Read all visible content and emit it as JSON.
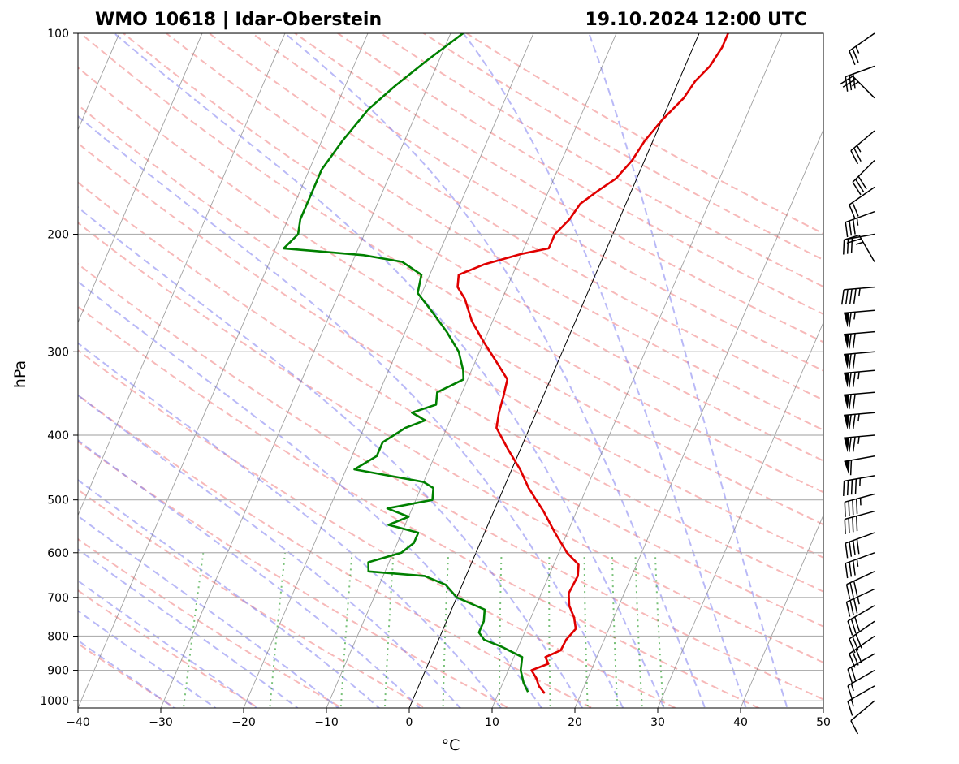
{
  "chart_data": {
    "type": "line",
    "chart_kind": "skew-T log-p sounding",
    "title_left": "WMO 10618 | Idar-Oberstein",
    "title_right": "19.10.2024 12:00 UTC",
    "xlabel": "°C",
    "ylabel": "hPa",
    "xlim": [
      -40,
      50
    ],
    "ylim": [
      1025,
      100
    ],
    "y_scale": "log",
    "x_ticks": [
      -40,
      -30,
      -20,
      -10,
      0,
      10,
      20,
      30,
      40,
      50
    ],
    "x_tick_labels": [
      "−40",
      "−30",
      "−20",
      "−10",
      "0",
      "10",
      "20",
      "30",
      "40",
      "50"
    ],
    "y_ticks": [
      1000,
      900,
      800,
      700,
      600,
      500,
      400,
      300,
      200,
      100
    ],
    "y_tick_labels": [
      "1000",
      "900",
      "800",
      "700",
      "600",
      "500",
      "400",
      "300",
      "200",
      "100"
    ],
    "grid": "horizontal",
    "background_lines": {
      "isotherm_interval": 10,
      "dry_adiabats": "dashed red",
      "moist_adiabats": "dashed blue",
      "mixing_ratio_lines": "dotted green",
      "highlighted_isotherm": 0
    },
    "series": [
      {
        "color": "#e00000",
        "points": [
          [
            975,
            15.6
          ],
          [
            950,
            14.5
          ],
          [
            925,
            13.8
          ],
          [
            900,
            12.8
          ],
          [
            880,
            14.5
          ],
          [
            860,
            13.8
          ],
          [
            840,
            15.3
          ],
          [
            810,
            15.4
          ],
          [
            780,
            16.0
          ],
          [
            750,
            15.2
          ],
          [
            720,
            14.0
          ],
          [
            690,
            13.3
          ],
          [
            650,
            13.5
          ],
          [
            625,
            13.0
          ],
          [
            600,
            11.0
          ],
          [
            560,
            8.5
          ],
          [
            520,
            6.0
          ],
          [
            480,
            3.0
          ],
          [
            450,
            1.0
          ],
          [
            420,
            -1.5
          ],
          [
            390,
            -4.0
          ],
          [
            370,
            -4.5
          ],
          [
            350,
            -4.8
          ],
          [
            330,
            -5.2
          ],
          [
            310,
            -7.5
          ],
          [
            290,
            -10.0
          ],
          [
            270,
            -12.5
          ],
          [
            250,
            -14.5
          ],
          [
            240,
            -16.0
          ],
          [
            230,
            -16.5
          ],
          [
            222,
            -14.0
          ],
          [
            214,
            -10.0
          ],
          [
            210,
            -7.0
          ],
          [
            200,
            -7.0
          ],
          [
            190,
            -6.0
          ],
          [
            180,
            -5.5
          ],
          [
            172,
            -4.0
          ],
          [
            165,
            -2.5
          ],
          [
            155,
            -1.5
          ],
          [
            145,
            -1.0
          ],
          [
            135,
            0.0
          ],
          [
            125,
            1.5
          ],
          [
            118,
            2.0
          ],
          [
            112,
            3.0
          ],
          [
            105,
            3.5
          ],
          [
            100,
            3.5
          ]
        ]
      },
      {
        "color": "#008000",
        "points": [
          [
            970,
            13.5
          ],
          [
            940,
            12.5
          ],
          [
            900,
            11.5
          ],
          [
            860,
            11.0
          ],
          [
            830,
            8.0
          ],
          [
            810,
            5.5
          ],
          [
            790,
            4.5
          ],
          [
            760,
            4.5
          ],
          [
            730,
            4.0
          ],
          [
            700,
            0.0
          ],
          [
            670,
            -2.0
          ],
          [
            650,
            -5.0
          ],
          [
            640,
            -12.0
          ],
          [
            620,
            -12.5
          ],
          [
            600,
            -9.0
          ],
          [
            580,
            -8.0
          ],
          [
            560,
            -8.0
          ],
          [
            545,
            -12.0
          ],
          [
            530,
            -10.0
          ],
          [
            515,
            -13.0
          ],
          [
            500,
            -8.0
          ],
          [
            480,
            -8.5
          ],
          [
            470,
            -10.0
          ],
          [
            450,
            -19.0
          ],
          [
            430,
            -17.0
          ],
          [
            410,
            -17.0
          ],
          [
            390,
            -15.0
          ],
          [
            380,
            -13.0
          ],
          [
            370,
            -15.0
          ],
          [
            360,
            -12.5
          ],
          [
            345,
            -13.0
          ],
          [
            330,
            -10.5
          ],
          [
            320,
            -11.0
          ],
          [
            300,
            -12.5
          ],
          [
            280,
            -15.0
          ],
          [
            260,
            -18.0
          ],
          [
            245,
            -20.5
          ],
          [
            230,
            -21.0
          ],
          [
            220,
            -24.0
          ],
          [
            215,
            -29.0
          ],
          [
            210,
            -39.0
          ],
          [
            200,
            -38.0
          ],
          [
            190,
            -38.5
          ],
          [
            175,
            -38.5
          ],
          [
            160,
            -38.5
          ],
          [
            145,
            -37.5
          ],
          [
            130,
            -36.0
          ],
          [
            120,
            -34.0
          ],
          [
            110,
            -31.5
          ],
          [
            100,
            -28.5
          ]
        ]
      }
    ],
    "wind_barbs": [
      {
        "p": 100,
        "dir": 235,
        "kt": 25
      },
      {
        "p": 112,
        "dir": 250,
        "kt": 30
      },
      {
        "p": 125,
        "dir": 315,
        "kt": 25
      },
      {
        "p": 140,
        "dir": 230,
        "kt": 25
      },
      {
        "p": 155,
        "dir": 225,
        "kt": 30
      },
      {
        "p": 170,
        "dir": 235,
        "kt": 20
      },
      {
        "p": 185,
        "dir": 250,
        "kt": 35
      },
      {
        "p": 200,
        "dir": 260,
        "kt": 30
      },
      {
        "p": 220,
        "dir": 330,
        "kt": 25
      },
      {
        "p": 240,
        "dir": 265,
        "kt": 45
      },
      {
        "p": 260,
        "dir": 265,
        "kt": 65
      },
      {
        "p": 280,
        "dir": 265,
        "kt": 70
      },
      {
        "p": 300,
        "dir": 265,
        "kt": 70
      },
      {
        "p": 320,
        "dir": 265,
        "kt": 75
      },
      {
        "p": 345,
        "dir": 265,
        "kt": 70
      },
      {
        "p": 370,
        "dir": 265,
        "kt": 75
      },
      {
        "p": 400,
        "dir": 265,
        "kt": 75
      },
      {
        "p": 430,
        "dir": 260,
        "kt": 60
      },
      {
        "p": 460,
        "dir": 260,
        "kt": 45
      },
      {
        "p": 490,
        "dir": 255,
        "kt": 45
      },
      {
        "p": 520,
        "dir": 255,
        "kt": 40
      },
      {
        "p": 560,
        "dir": 250,
        "kt": 40
      },
      {
        "p": 600,
        "dir": 250,
        "kt": 35
      },
      {
        "p": 640,
        "dir": 245,
        "kt": 30
      },
      {
        "p": 680,
        "dir": 245,
        "kt": 35
      },
      {
        "p": 720,
        "dir": 240,
        "kt": 30
      },
      {
        "p": 760,
        "dir": 235,
        "kt": 30
      },
      {
        "p": 800,
        "dir": 235,
        "kt": 30
      },
      {
        "p": 850,
        "dir": 240,
        "kt": 20
      },
      {
        "p": 900,
        "dir": 240,
        "kt": 15
      },
      {
        "p": 950,
        "dir": 240,
        "kt": 15
      },
      {
        "p": 1000,
        "dir": 230,
        "kt": 10
      }
    ]
  }
}
